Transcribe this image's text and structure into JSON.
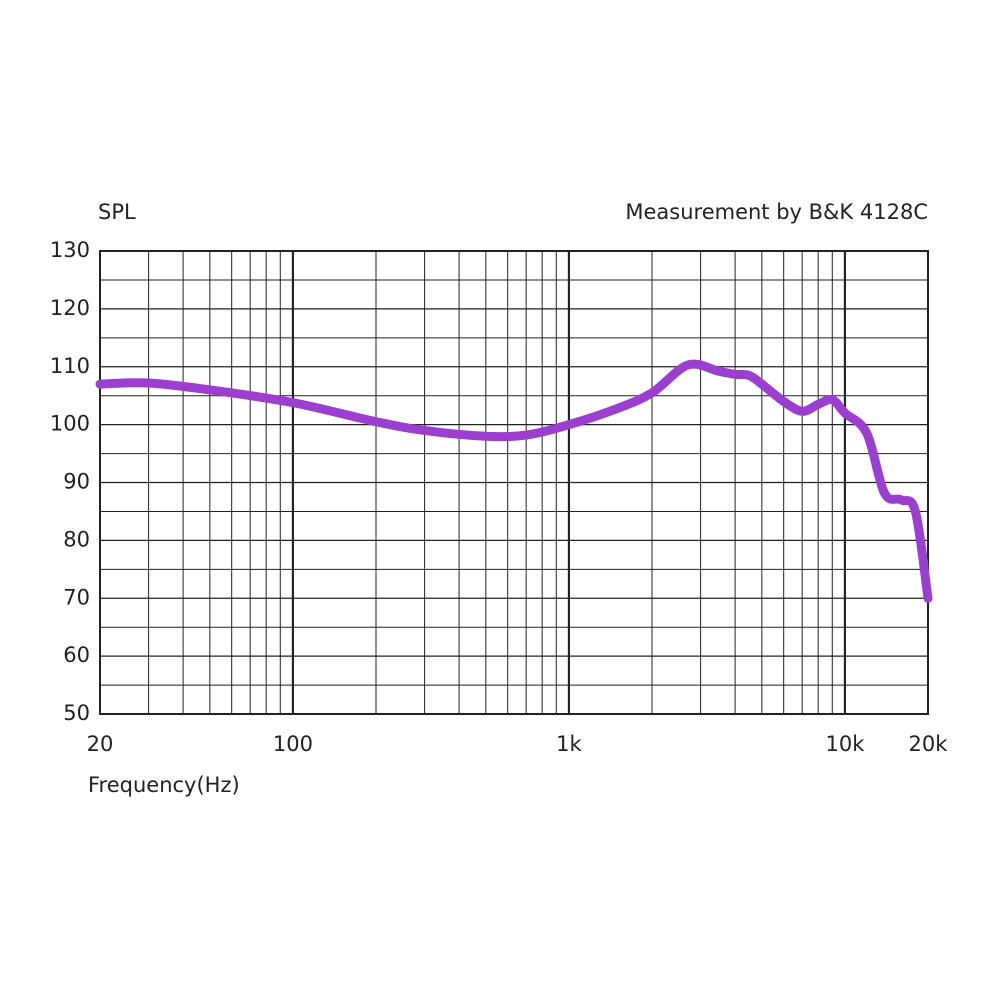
{
  "chart_data": {
    "type": "line",
    "y_label": "SPL",
    "annotation": "Measurement by B&K 4128C",
    "x_label": "Frequency(Hz)",
    "log_x": true,
    "grid": true,
    "xlim": [
      20,
      20000
    ],
    "xticks": [
      20,
      100,
      {
        "value": 1000,
        "label": "1k"
      },
      {
        "value": 10000,
        "label": "10k"
      },
      {
        "value": 20000,
        "label": "20k"
      }
    ],
    "ylim": [
      50,
      130
    ],
    "yticks": [
      50,
      60,
      70,
      80,
      90,
      100,
      110,
      120,
      130
    ],
    "x": [
      20,
      30,
      50,
      100,
      200,
      300,
      500,
      700,
      1000,
      1500,
      2000,
      2700,
      3500,
      4000,
      4500,
      5000,
      6000,
      7000,
      8000,
      9000,
      10000,
      12000,
      13900,
      16000,
      18000,
      20000
    ],
    "series": [
      {
        "color": "#9b3fd0",
        "values": [
          107,
          107.2,
          106,
          103.8,
          100.5,
          99,
          98,
          98.2,
          100,
          102.8,
          105.5,
          110.3,
          109.2,
          108.7,
          108.5,
          107,
          104,
          102.3,
          103.5,
          104.3,
          102,
          98.5,
          88.2,
          87,
          85,
          70
        ]
      }
    ]
  }
}
